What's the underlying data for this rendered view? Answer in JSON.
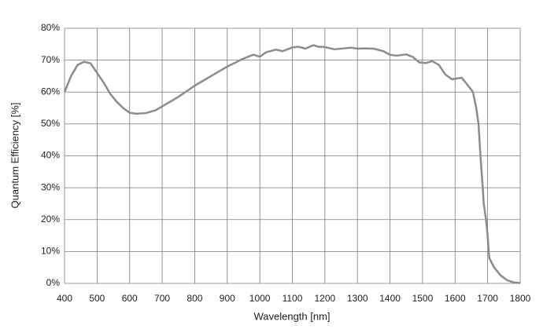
{
  "chart_data": {
    "type": "line",
    "x_label": "Wavelength [nm]",
    "y_label": "Quantum Efficiency [%]",
    "x": [
      400,
      420,
      440,
      460,
      480,
      500,
      520,
      540,
      560,
      580,
      600,
      620,
      650,
      680,
      700,
      750,
      800,
      850,
      900,
      950,
      980,
      1000,
      1020,
      1050,
      1070,
      1100,
      1120,
      1140,
      1165,
      1180,
      1200,
      1230,
      1280,
      1300,
      1320,
      1350,
      1380,
      1400,
      1420,
      1450,
      1470,
      1490,
      1510,
      1530,
      1550,
      1570,
      1590,
      1620,
      1640,
      1655,
      1665,
      1672,
      1678,
      1685,
      1688,
      1695,
      1700,
      1705,
      1720,
      1740,
      1760,
      1780,
      1800
    ],
    "series": [
      {
        "name": "Quantum Efficiency",
        "color": "#8c8c8c",
        "values": [
          60,
          65,
          68.5,
          69.5,
          69,
          66,
          63,
          59.5,
          57,
          55,
          53.5,
          53.2,
          53.4,
          54.3,
          55.5,
          58.5,
          62,
          65,
          68,
          70.5,
          71.7,
          71.1,
          72.5,
          73.3,
          72.8,
          74,
          74.2,
          73.6,
          74.7,
          74.2,
          74.1,
          73.4,
          73.9,
          73.6,
          73.7,
          73.6,
          72.8,
          71.7,
          71.4,
          71.8,
          71,
          69.3,
          69.1,
          69.7,
          68.5,
          65.5,
          64,
          64.5,
          62,
          60,
          55,
          50,
          40,
          30,
          25,
          20,
          15,
          8,
          5,
          2.5,
          1,
          0.3,
          0.1
        ]
      }
    ],
    "xlim": [
      400,
      1800
    ],
    "xticks": [
      400,
      500,
      600,
      700,
      800,
      900,
      1000,
      1100,
      1200,
      1300,
      1400,
      1500,
      1600,
      1700,
      1800
    ],
    "ylim": [
      0,
      80
    ],
    "yticks": [
      {
        "value": 0,
        "label": "0%"
      },
      {
        "value": 10,
        "label": "10%"
      },
      {
        "value": 20,
        "label": "20%"
      },
      {
        "value": 30,
        "label": "30%"
      },
      {
        "value": 40,
        "label": "40%"
      },
      {
        "value": 50,
        "label": "50%"
      },
      {
        "value": 60,
        "label": "60%"
      },
      {
        "value": 70,
        "label": "70%"
      },
      {
        "value": 80,
        "label": "80%"
      }
    ],
    "grid": true
  }
}
